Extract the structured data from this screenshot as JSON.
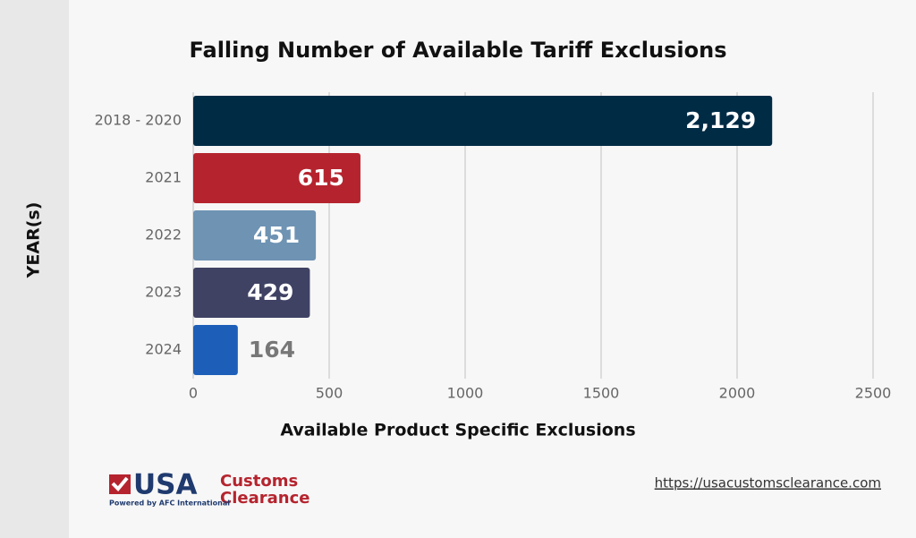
{
  "chart_data": {
    "type": "bar",
    "orientation": "horizontal",
    "title": "Falling Number of Available Tariff Exclusions",
    "x_label": "Available Product Specific Exclusions",
    "y_label": "YEAR(s)",
    "categories": [
      "2018 - 2020",
      "2021",
      "2022",
      "2023",
      "2024"
    ],
    "values": [
      2129,
      615,
      451,
      429,
      164
    ],
    "value_labels": [
      "2,129",
      "615",
      "451",
      "429",
      "164"
    ],
    "colors": [
      "#002b45",
      "#b5242e",
      "#6e93b3",
      "#3f4263",
      "#1d5fb8"
    ],
    "xlim": [
      0,
      2500
    ],
    "xticks": [
      0,
      500,
      1000,
      1500,
      2000,
      2500
    ],
    "grid": true
  },
  "footer": {
    "logo_main": "USA",
    "logo_line1": "Customs",
    "logo_line2": "Clearance",
    "logo_tagline": "Powered by AFC International",
    "url": "https://usacustomsclearance.com"
  }
}
